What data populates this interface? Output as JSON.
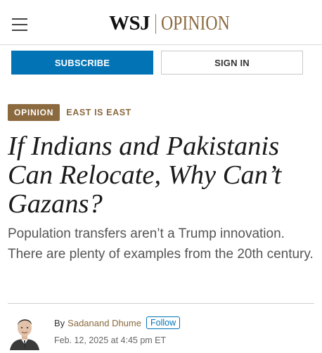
{
  "header": {
    "menu_icon": "hamburger-menu-icon",
    "logo_wsj": "WSJ",
    "logo_section": "OPINION"
  },
  "account": {
    "subscribe_label": "SUBSCRIBE",
    "signin_label": "SIGN IN"
  },
  "article": {
    "section_badge": "OPINION",
    "column_name": "EAST IS EAST",
    "headline": "If Indians and Pakistanis Can Relocate, Why Can’t Gazans?",
    "dek": "Population transfers aren’t a Trump innovation. There are plenty of examples from the 20th century.",
    "byline_prefix": "By",
    "author": "Sadanand Dhume",
    "follow_label": "Follow",
    "timestamp": "Feb. 12, 2025 at 4:45 pm ET"
  },
  "colors": {
    "brand_blue": "#0274b6",
    "opinion_brown": "#8b6a3f"
  }
}
